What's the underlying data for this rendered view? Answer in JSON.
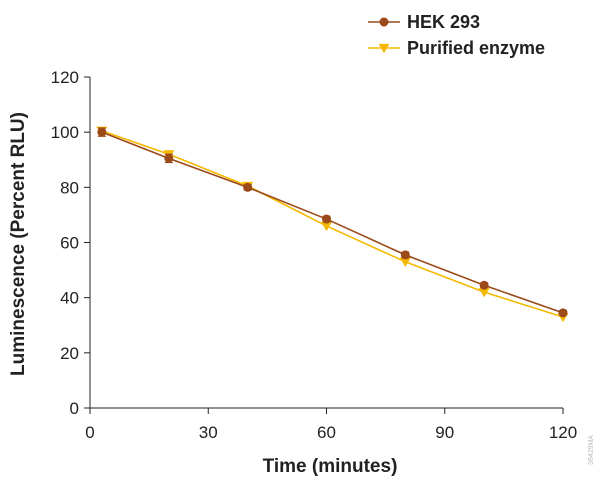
{
  "chart_data": {
    "type": "line",
    "title": "",
    "xlabel": "Time (minutes)",
    "ylabel": "Luminescence (Percent RLU)",
    "xlim": [
      0,
      120
    ],
    "ylim": [
      0,
      120
    ],
    "x_ticks": [
      "0",
      "30",
      "60",
      "90",
      "120"
    ],
    "y_ticks": [
      "0",
      "20",
      "40",
      "60",
      "80",
      "100",
      "120"
    ],
    "grid": false,
    "legend_position": "top-right",
    "series": [
      {
        "name": "HEK 293",
        "color": "#9c4a1a",
        "marker": "circle",
        "x": [
          3,
          20,
          40,
          60,
          80,
          100,
          120
        ],
        "y": [
          100,
          90.5,
          80,
          68.5,
          55.5,
          44.5,
          34.5
        ],
        "error": [
          1.5,
          1.5,
          1.0,
          1.0,
          1.0,
          0.8,
          0.8
        ]
      },
      {
        "name": "Purified enzyme",
        "color": "#f5b800",
        "marker": "triangle-down",
        "x": [
          3,
          20,
          40,
          60,
          80,
          100,
          120
        ],
        "y": [
          100.5,
          92,
          80.5,
          66,
          53,
          42,
          33
        ],
        "error": [
          0,
          0,
          0,
          0,
          0,
          0,
          0
        ]
      }
    ],
    "figure_code": "38429MA"
  }
}
